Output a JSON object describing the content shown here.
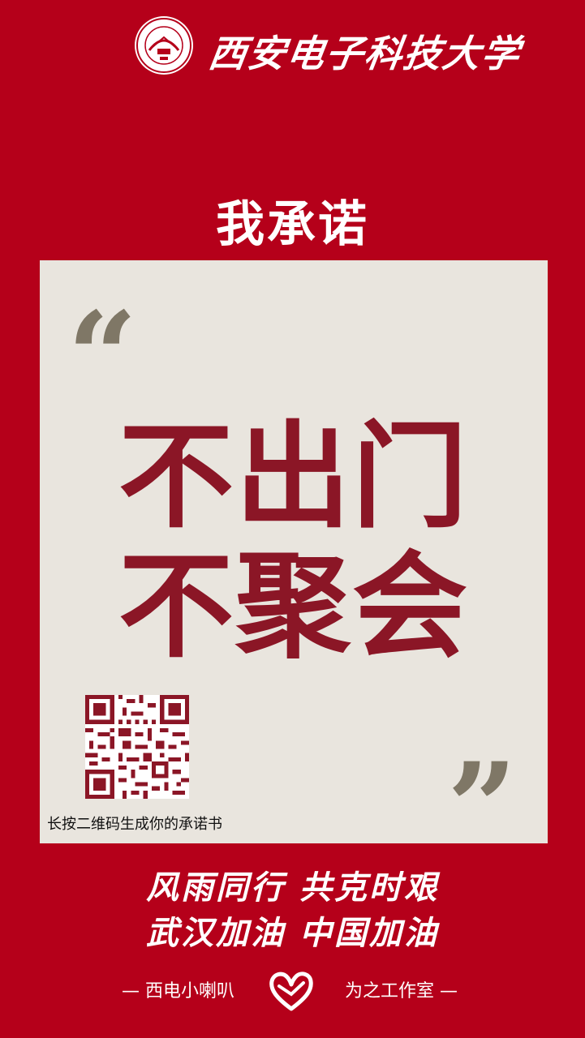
{
  "header": {
    "university_name": "西安电子科技大学",
    "emblem_icon": "xidian-university-emblem"
  },
  "pledge": {
    "heading": "我承诺",
    "slogan_line1": "不出门",
    "slogan_line2": "不聚会",
    "quote_open": "“",
    "quote_close": "”"
  },
  "qr": {
    "icon": "qr-code-icon",
    "caption": "长按二维码生成你的承诺书"
  },
  "motto": {
    "line1": "风雨同行 共克时艰",
    "line2": "武汉加油 中国加油"
  },
  "footer": {
    "left_text": "— 西电小喇叭",
    "right_text": "为之工作室 —",
    "logo_icon": "heart-logo-icon"
  },
  "colors": {
    "background": "#B5001A",
    "card": "#E9E5DE",
    "slogan": "#8B1626",
    "quote": "#7F7766"
  }
}
